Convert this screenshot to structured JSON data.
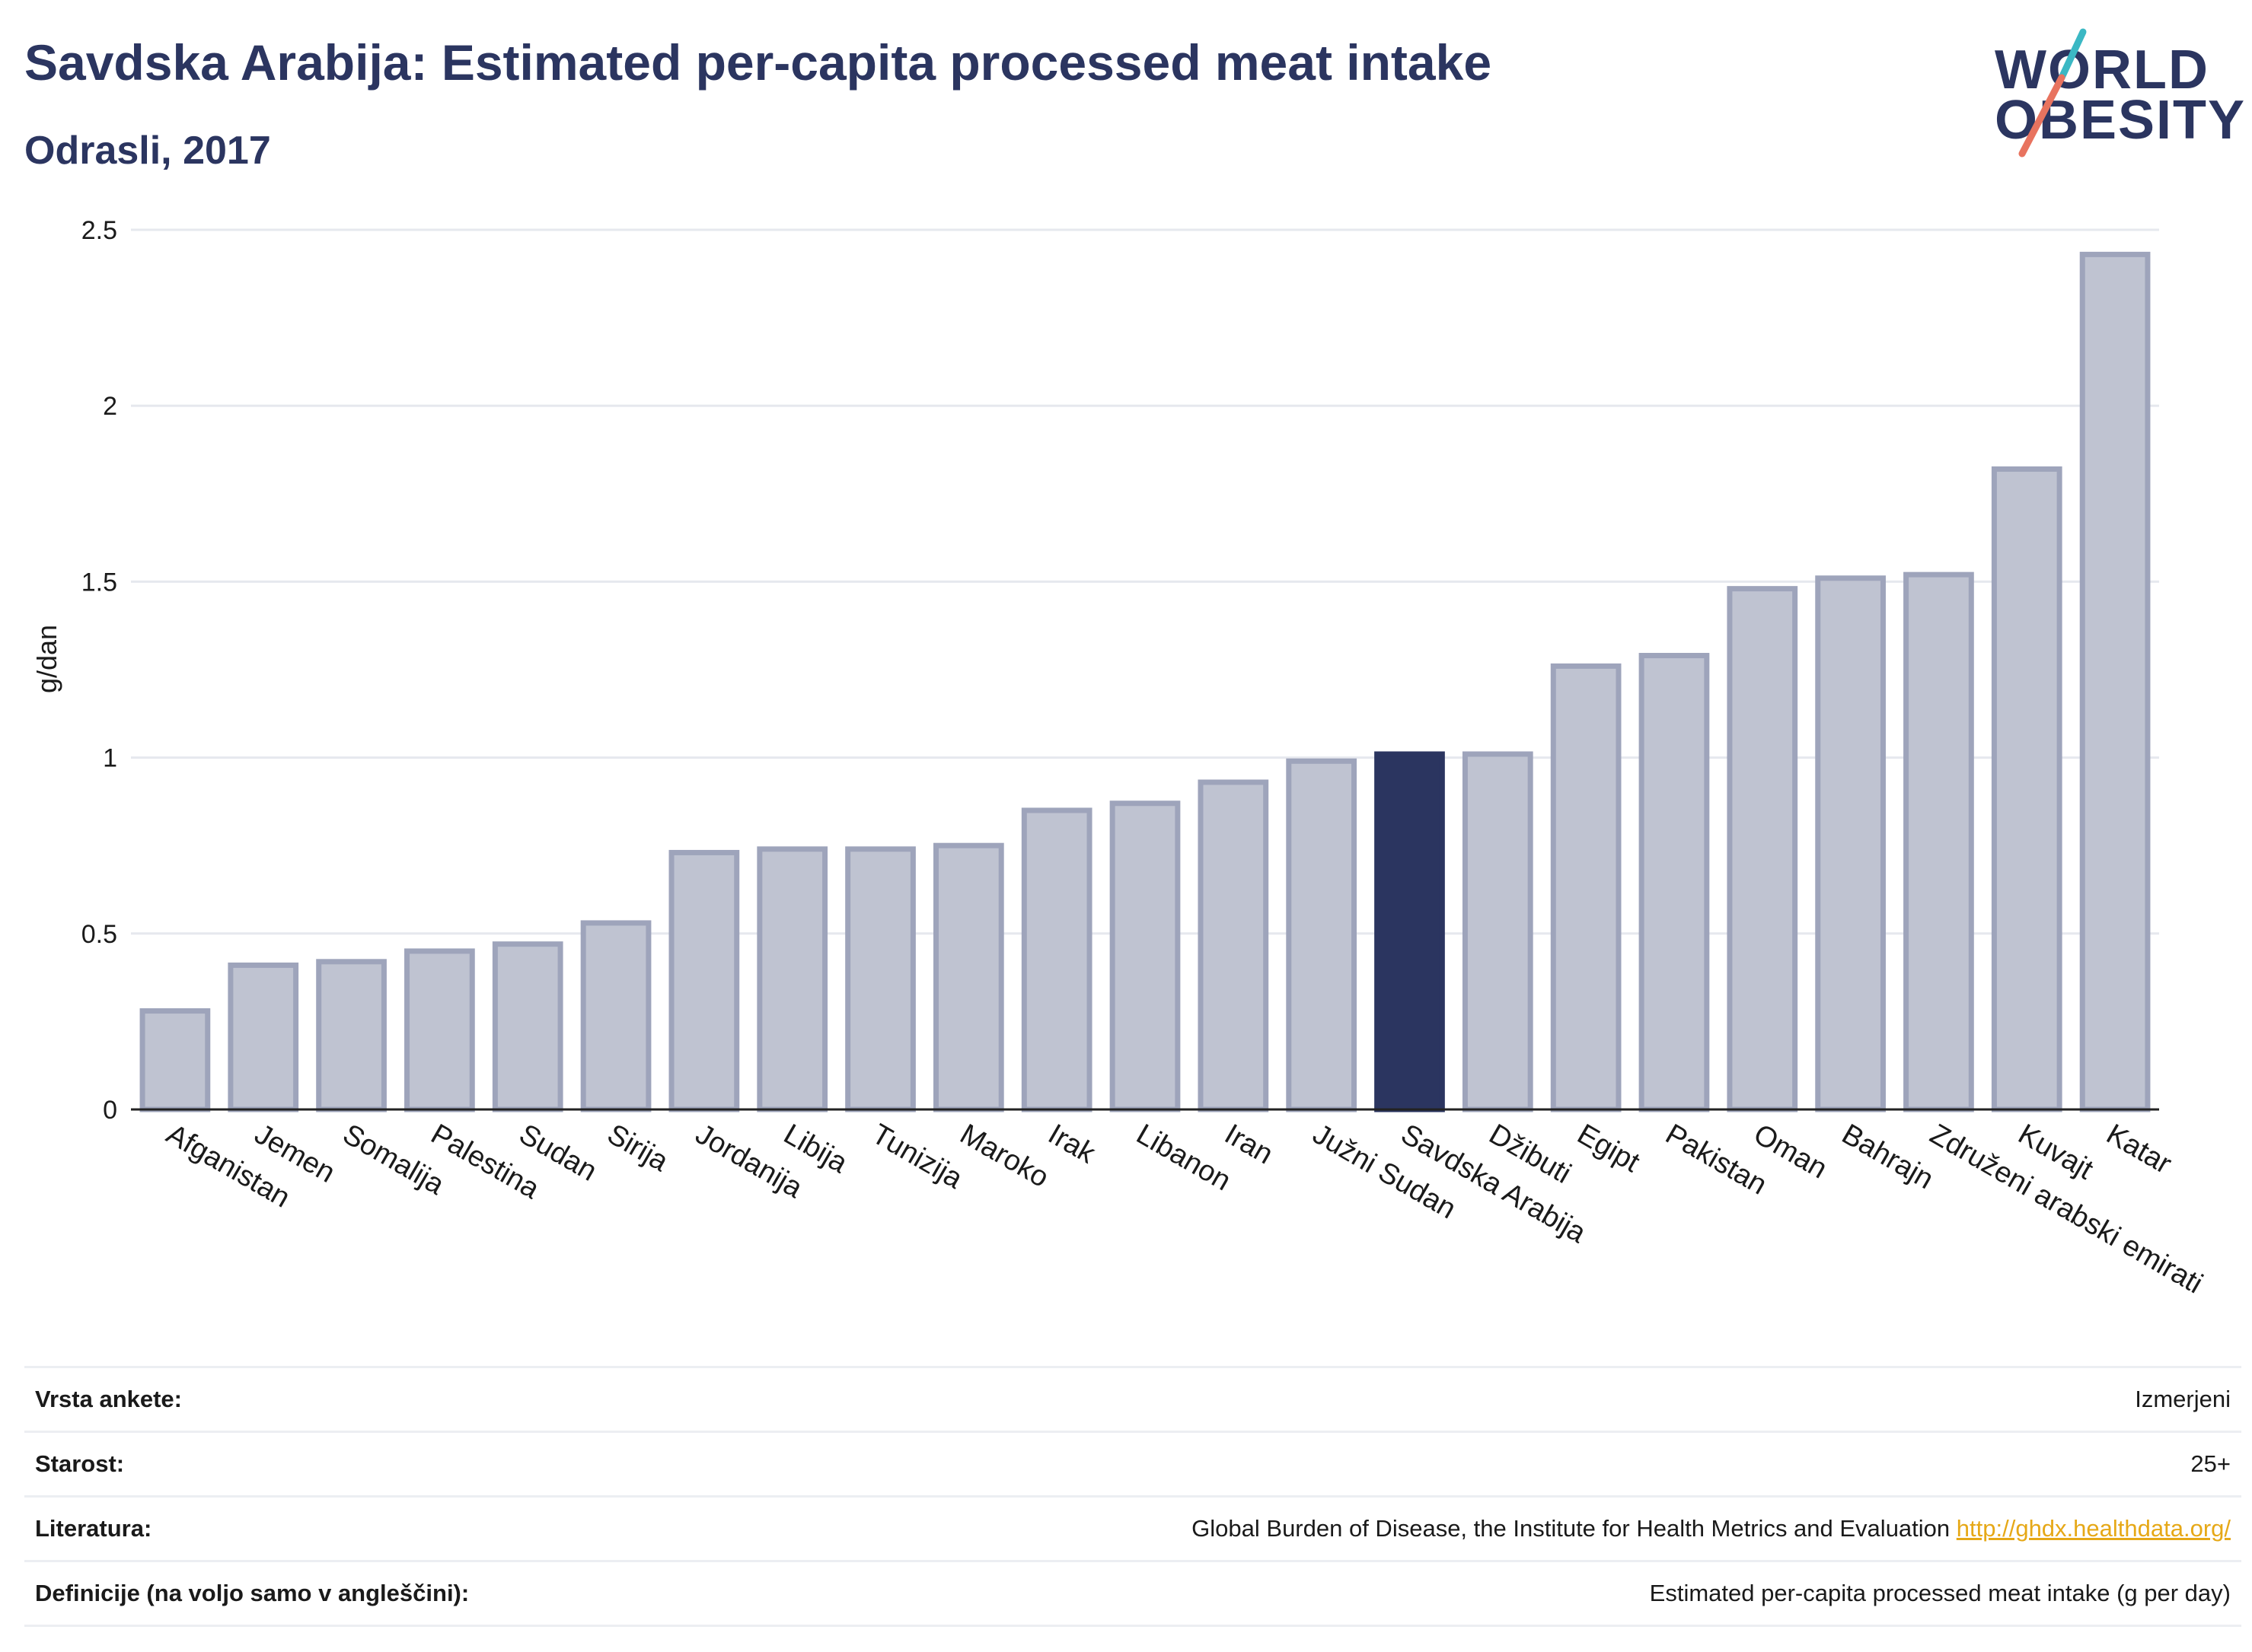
{
  "header": {
    "title": "Savdska Arabija: Estimated per-capita processed meat intake",
    "subtitle": "Odrasli, 2017"
  },
  "logo": {
    "line1": "WORLD",
    "line2": "OBESITY",
    "colors": {
      "text": "#2b3560",
      "slash_top": "#3bb8c4",
      "slash_bottom": "#e8735f"
    }
  },
  "colors": {
    "bar": "#bfc3d1",
    "bar_stroke": "#9ea4bb",
    "highlight": "#2b3560",
    "grid": "#e6e8ee",
    "axis": "#222222",
    "link": "#e6a817"
  },
  "chart_data": {
    "type": "bar",
    "ylabel": "g/dan",
    "xlabel": "",
    "ylim": [
      0,
      2.5
    ],
    "yticks": [
      0,
      0.5,
      1,
      1.5,
      2,
      2.5
    ],
    "ytick_labels": [
      "0",
      "0.5",
      "1",
      "1.5",
      "2",
      "2.5"
    ],
    "grid": true,
    "highlight": "Savdska Arabija",
    "categories": [
      "Afganistan",
      "Jemen",
      "Somalija",
      "Palestina",
      "Sudan",
      "Sirija",
      "Jordanija",
      "Libija",
      "Tunizija",
      "Maroko",
      "Irak",
      "Libanon",
      "Iran",
      "Južni Sudan",
      "Savdska Arabija",
      "Džibuti",
      "Egipt",
      "Pakistan",
      "Oman",
      "Bahrajn",
      "Združeni arabski emirati",
      "Kuvajt",
      "Katar"
    ],
    "values": [
      0.28,
      0.41,
      0.42,
      0.45,
      0.47,
      0.53,
      0.73,
      0.74,
      0.74,
      0.75,
      0.85,
      0.87,
      0.93,
      0.99,
      1.01,
      1.01,
      1.26,
      1.29,
      1.48,
      1.51,
      1.52,
      1.82,
      2.43
    ]
  },
  "info": [
    {
      "label": "Vrsta ankete:",
      "value": "Izmerjeni"
    },
    {
      "label": "Starost:",
      "value": "25+"
    },
    {
      "label": "Literatura:",
      "value": "Global Burden of Disease, the Institute for Health Metrics and Evaluation",
      "link": "http://ghdx.healthdata.org/"
    },
    {
      "label": "Definicije (na voljo samo v angleščini):",
      "value": "Estimated per-capita processed meat intake (g per day)"
    }
  ]
}
